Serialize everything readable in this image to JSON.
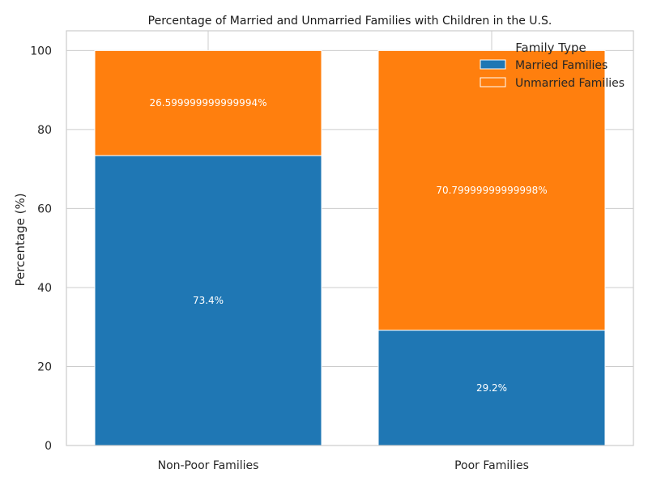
{
  "chart_data": {
    "type": "bar",
    "stacked": true,
    "title": "Percentage of Married and Unmarried Families with Children in the U.S.",
    "xlabel": "",
    "ylabel": "Percentage (%)",
    "categories": [
      "Non-Poor Families",
      "Poor Families"
    ],
    "ylim": [
      0,
      105
    ],
    "yticks": [
      0,
      20,
      40,
      60,
      80,
      100
    ],
    "grid": true,
    "legend": {
      "title": "Family Type",
      "placement": "top-right"
    },
    "series": [
      {
        "name": "Married Families",
        "color": "#1f77b4",
        "values": [
          73.4,
          29.2
        ],
        "labels": [
          "73.4%",
          "29.2%"
        ]
      },
      {
        "name": "Unmarried Families",
        "color": "#ff7f0e",
        "values": [
          26.6,
          70.8
        ],
        "labels": [
          "26.599999999999994%",
          "70.79999999999998%"
        ]
      }
    ]
  }
}
